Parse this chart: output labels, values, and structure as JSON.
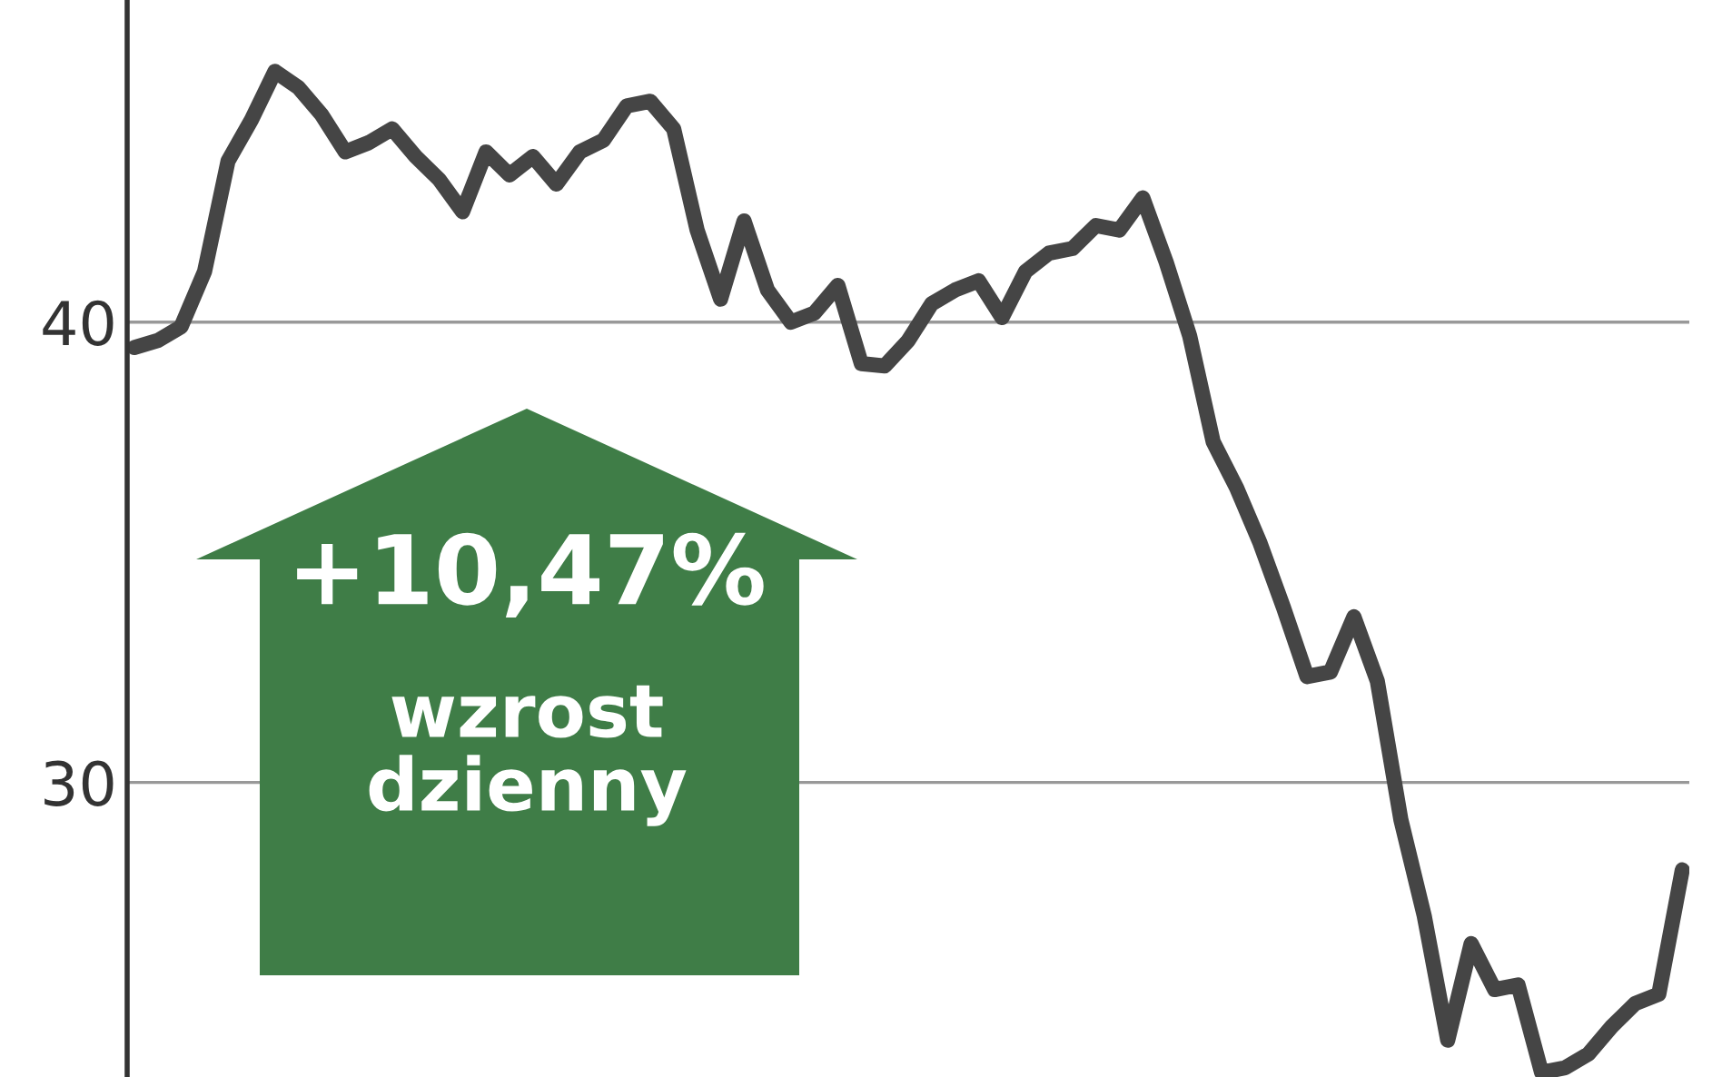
{
  "chart_data": {
    "type": "line",
    "categories": [
      null,
      null,
      null,
      null,
      null,
      null,
      null,
      null,
      null,
      null,
      null,
      null,
      null,
      null,
      null,
      null,
      null,
      null,
      null,
      null,
      null,
      null,
      null,
      null,
      null,
      null,
      null,
      null,
      null,
      null,
      null,
      null,
      null,
      null,
      null,
      null,
      null,
      null,
      null,
      null,
      null,
      null,
      null,
      null,
      null,
      null,
      null,
      null,
      null,
      null,
      null,
      null,
      null,
      null,
      null,
      null,
      null,
      null,
      null,
      null,
      null,
      null,
      null,
      null,
      null,
      null,
      null
    ],
    "series": [
      {
        "color": "#454545",
        "values": [
          39.45,
          39.6,
          39.9,
          41.1,
          43.5,
          44.4,
          45.45,
          45.1,
          44.5,
          43.7,
          43.9,
          44.2,
          43.6,
          43.1,
          42.4,
          43.7,
          43.2,
          43.6,
          43.0,
          43.7,
          43.95,
          44.7,
          44.8,
          44.2,
          42.0,
          40.5,
          42.2,
          40.7,
          40.0,
          40.2,
          40.8,
          39.1,
          39.05,
          39.6,
          40.4,
          40.7,
          40.9,
          40.1,
          41.1,
          41.5,
          41.6,
          42.1,
          42.0,
          42.7,
          41.3,
          39.7,
          37.4,
          36.4,
          35.2,
          33.8,
          32.3,
          32.4,
          33.6,
          32.2,
          29.2,
          27.1,
          24.4,
          26.5,
          25.5,
          25.6,
          23.7,
          23.8,
          24.1,
          24.7,
          25.2,
          25.4,
          28.1
        ]
      }
    ],
    "ylim": [
      23.6,
      47.0
    ],
    "yticks": [
      30,
      40
    ],
    "grid": "y",
    "legend": false,
    "marker": "none",
    "line_style": "solid",
    "annotations": [
      "+10,47%",
      "wzrost\ndzienny"
    ]
  }
}
